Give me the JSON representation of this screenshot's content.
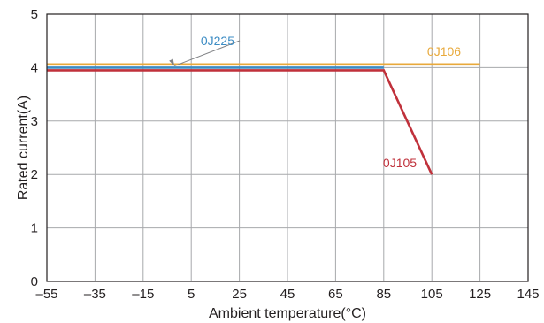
{
  "chart_data": {
    "type": "line",
    "xlabel": "Ambient temperature(°C)",
    "ylabel": "Rated current(A)",
    "xlim": [
      -55,
      145
    ],
    "ylim": [
      0,
      5
    ],
    "xticks": [
      "–55",
      "–35",
      "–15",
      "5",
      "25",
      "45",
      "65",
      "85",
      "105",
      "125",
      "145"
    ],
    "xtick_values": [
      -55,
      -35,
      -15,
      5,
      25,
      45,
      65,
      85,
      105,
      125,
      145
    ],
    "yticks": [
      "0",
      "1",
      "2",
      "3",
      "4",
      "5"
    ],
    "ytick_values": [
      0,
      1,
      2,
      3,
      4,
      5
    ],
    "grid": true,
    "series": [
      {
        "name": "0J106",
        "color": "#e8a93b",
        "x": [
          -55,
          125
        ],
        "y": [
          4.06,
          4.06
        ]
      },
      {
        "name": "0J225",
        "color": "#3c8cc4",
        "x": [
          -55,
          85
        ],
        "y": [
          4.0,
          4.0
        ]
      },
      {
        "name": "0J105",
        "color": "#c0313b",
        "x": [
          -55,
          85,
          105
        ],
        "y": [
          3.95,
          3.95,
          2.0
        ]
      }
    ],
    "annotations": [
      {
        "text": "0J225",
        "series": "0J225",
        "pointer_to": [
          -2,
          4.03
        ]
      },
      {
        "text": "0J106",
        "series": "0J106"
      },
      {
        "text": "0J105",
        "series": "0J105"
      }
    ]
  }
}
